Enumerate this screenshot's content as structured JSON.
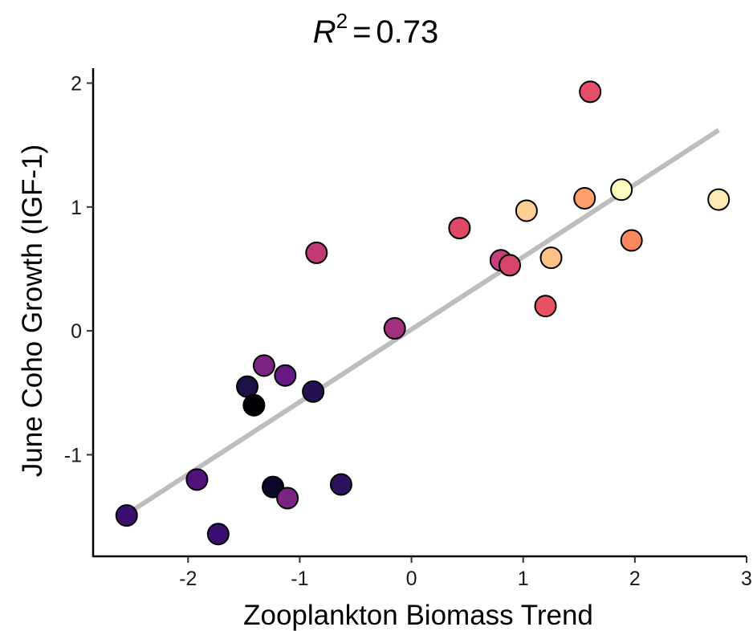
{
  "chart_data": {
    "type": "scatter",
    "title": "R² = 0.73",
    "title_parts": {
      "r": "R",
      "sup": "2",
      "eq": "=",
      "value": "0.73"
    },
    "xlabel": "Zooplankton Biomass Trend",
    "ylabel": "June Coho Growth (IGF-1)",
    "xlim": [
      -2.85,
      3.0
    ],
    "ylim": [
      -1.82,
      2.12
    ],
    "x_ticks": [
      -2,
      -1,
      0,
      1,
      2,
      3
    ],
    "y_ticks": [
      -1,
      0,
      1,
      2
    ],
    "x_tick_labels": [
      "-2",
      "-1",
      "0",
      "1",
      "2",
      "3"
    ],
    "y_tick_labels": [
      "-1",
      "0",
      "1",
      "2"
    ],
    "grid": false,
    "legend": "none",
    "fit_line": {
      "x": [
        -2.55,
        2.75
      ],
      "y": [
        -1.48,
        1.62
      ],
      "color": "#bdbdbd"
    },
    "points": [
      {
        "x": -2.55,
        "y": -1.49,
        "color": "#3b0f70"
      },
      {
        "x": -1.92,
        "y": -1.2,
        "color": "#51127c"
      },
      {
        "x": -1.73,
        "y": -1.64,
        "color": "#3b0f70"
      },
      {
        "x": -1.47,
        "y": -0.45,
        "color": "#1d1147"
      },
      {
        "x": -1.41,
        "y": -0.6,
        "color": "#000004"
      },
      {
        "x": -1.32,
        "y": -0.28,
        "color": "#7b2382"
      },
      {
        "x": -1.24,
        "y": -1.26,
        "color": "#0d0829"
      },
      {
        "x": -1.13,
        "y": -0.36,
        "color": "#641a80"
      },
      {
        "x": -1.11,
        "y": -1.35,
        "color": "#7b2382"
      },
      {
        "x": -0.88,
        "y": -0.49,
        "color": "#231151"
      },
      {
        "x": -0.85,
        "y": 0.63,
        "color": "#c03a76"
      },
      {
        "x": -0.63,
        "y": -1.24,
        "color": "#2c115f"
      },
      {
        "x": -0.15,
        "y": 0.02,
        "color": "#a3307e"
      },
      {
        "x": 0.43,
        "y": 0.83,
        "color": "#de4968"
      },
      {
        "x": 0.8,
        "y": 0.57,
        "color": "#c8407b"
      },
      {
        "x": 0.88,
        "y": 0.53,
        "color": "#d8456c"
      },
      {
        "x": 1.03,
        "y": 0.97,
        "color": "#fecf92"
      },
      {
        "x": 1.2,
        "y": 0.2,
        "color": "#e65164"
      },
      {
        "x": 1.25,
        "y": 0.59,
        "color": "#fec287"
      },
      {
        "x": 1.55,
        "y": 1.07,
        "color": "#fe9f6d"
      },
      {
        "x": 1.6,
        "y": 1.93,
        "color": "#e34f68"
      },
      {
        "x": 1.88,
        "y": 1.14,
        "color": "#fcfdbf"
      },
      {
        "x": 1.97,
        "y": 0.73,
        "color": "#fb8861"
      },
      {
        "x": 2.75,
        "y": 1.06,
        "color": "#fde9b4"
      }
    ]
  }
}
